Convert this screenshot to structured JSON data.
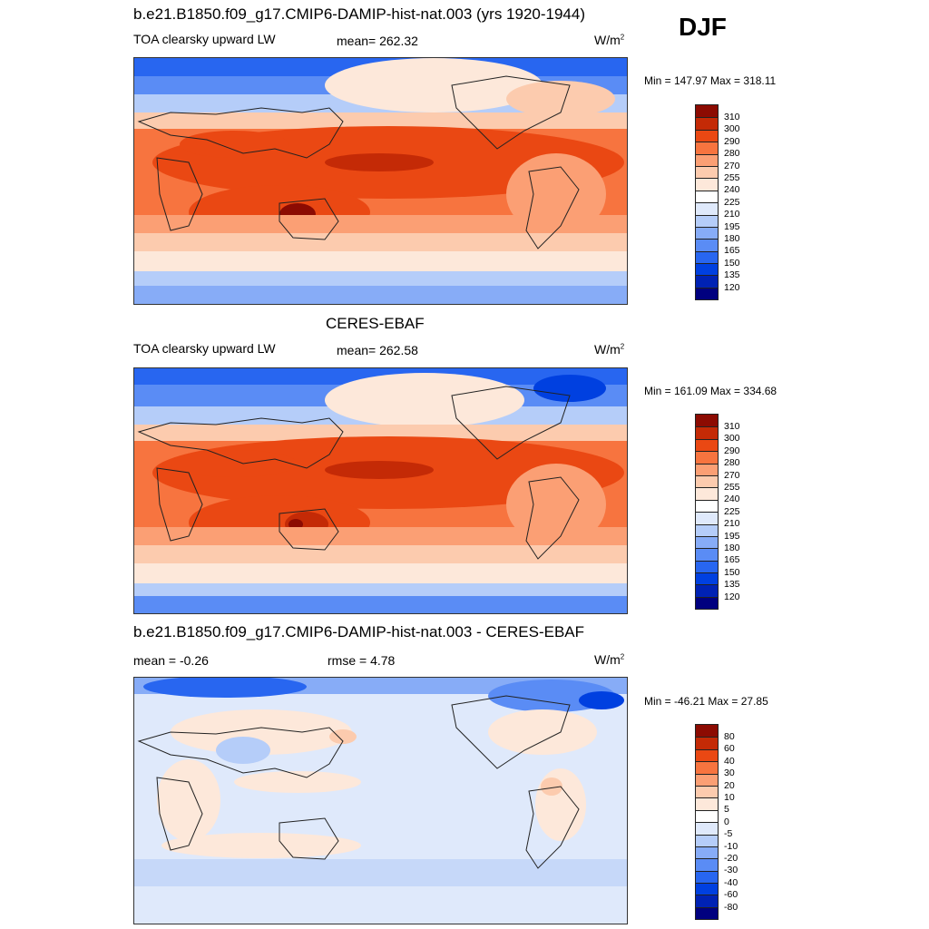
{
  "season": "DJF",
  "colors": {
    "abs_scale": [
      "#00007f",
      "#0022b4",
      "#0040e0",
      "#2866f0",
      "#5a8cf5",
      "#87acf7",
      "#b5cdf9",
      "#dfe9fb",
      "#fde8da",
      "#fccbae",
      "#fb9f74",
      "#f7743f",
      "#ea4813",
      "#c42a06",
      "#8c0b02"
    ],
    "diff_scale": [
      "#00007f",
      "#0022b4",
      "#0040e0",
      "#2866f0",
      "#5a8cf5",
      "#87acf7",
      "#b5cdf9",
      "#dfe9fb",
      "#fde8da",
      "#fccbae",
      "#fb9f74",
      "#f7743f",
      "#ea4813",
      "#c42a06",
      "#8c0b02"
    ]
  },
  "panels": [
    {
      "title": "b.e21.B1850.f09_g17.CMIP6-DAMIP-hist-nat.003 (yrs 1920-1944)",
      "variable": "TOA clearsky upward LW",
      "mean": "mean= 262.32",
      "units": "W/m",
      "units_exp": "2",
      "minmax": "Min = 147.97 Max = 318.11",
      "colorbar_labels": [
        "310",
        "300",
        "290",
        "280",
        "270",
        "255",
        "240",
        "225",
        "210",
        "195",
        "180",
        "165",
        "150",
        "135",
        "120"
      ]
    },
    {
      "title": "CERES-EBAF",
      "variable": "TOA clearsky upward LW",
      "mean": "mean= 262.58",
      "units": "W/m",
      "units_exp": "2",
      "minmax": "Min = 161.09 Max = 334.68",
      "colorbar_labels": [
        "310",
        "300",
        "290",
        "280",
        "270",
        "255",
        "240",
        "225",
        "210",
        "195",
        "180",
        "165",
        "150",
        "135",
        "120"
      ]
    },
    {
      "title": "b.e21.B1850.f09_g17.CMIP6-DAMIP-hist-nat.003 - CERES-EBAF",
      "variable": "mean =  -0.26",
      "mean": "rmse =   4.78",
      "units": "W/m",
      "units_exp": "2",
      "minmax": "Min = -46.21 Max =  27.85",
      "colorbar_labels": [
        "80",
        "60",
        "40",
        "30",
        "20",
        "10",
        "5",
        "0",
        "-5",
        "-10",
        "-20",
        "-30",
        "-40",
        "-60",
        "-80"
      ]
    }
  ]
}
